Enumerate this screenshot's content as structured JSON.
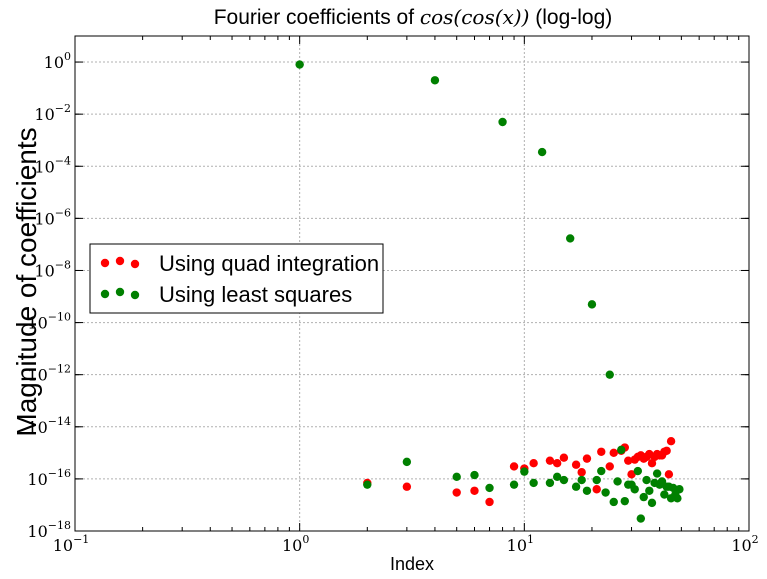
{
  "chart_data": {
    "type": "scatter",
    "title_prefix": "Fourier coefficients of ",
    "title_math": "cos(cos(x))",
    "title_suffix": " (log-log)",
    "xlabel": "Index",
    "ylabel": "Magnitude of coefficients",
    "x_scale": "log",
    "y_scale": "log",
    "xlim": [
      0.1,
      100
    ],
    "ylim": [
      1e-18,
      10
    ],
    "grid": true,
    "legend_position": "center-left",
    "x_ticks": [
      {
        "value": 0.1,
        "base": "10",
        "exp": "−1"
      },
      {
        "value": 1,
        "base": "10",
        "exp": "0"
      },
      {
        "value": 10,
        "base": "10",
        "exp": "1"
      },
      {
        "value": 100,
        "base": "10",
        "exp": "2"
      }
    ],
    "y_ticks": [
      {
        "value": 1,
        "base": "10",
        "exp": "0"
      },
      {
        "value": 0.01,
        "base": "10",
        "exp": "−2"
      },
      {
        "value": 0.0001,
        "base": "10",
        "exp": "−4"
      },
      {
        "value": 1e-06,
        "base": "10",
        "exp": "−6"
      },
      {
        "value": 1e-08,
        "base": "10",
        "exp": "−8"
      },
      {
        "value": 1e-10,
        "base": "10",
        "exp": "−10"
      },
      {
        "value": 1e-12,
        "base": "10",
        "exp": "−12"
      },
      {
        "value": 1e-14,
        "base": "10",
        "exp": "−14"
      },
      {
        "value": 1e-16,
        "base": "10",
        "exp": "−16"
      },
      {
        "value": 1e-18,
        "base": "10",
        "exp": "−18"
      }
    ],
    "series": [
      {
        "name": "Using quad integration",
        "color": "#ff0000",
        "points": [
          [
            2,
            7e-17
          ],
          [
            3,
            5e-17
          ],
          [
            5,
            3e-17
          ],
          [
            6,
            3.5e-17
          ],
          [
            7,
            1.3e-17
          ],
          [
            9,
            3e-16
          ],
          [
            10,
            2.5e-16
          ],
          [
            11,
            4e-16
          ],
          [
            13,
            5e-16
          ],
          [
            14,
            4e-16
          ],
          [
            15,
            6.5e-16
          ],
          [
            17,
            3.5e-16
          ],
          [
            18,
            1.8e-16
          ],
          [
            19,
            6e-16
          ],
          [
            21,
            4e-17
          ],
          [
            22,
            1.1e-15
          ],
          [
            24,
            3e-16
          ],
          [
            25,
            1e-15
          ],
          [
            27,
            1.2e-15
          ],
          [
            28,
            1.6e-15
          ],
          [
            29,
            5e-16
          ],
          [
            30,
            1.5e-16
          ],
          [
            31,
            5.5e-16
          ],
          [
            32,
            7e-16
          ],
          [
            33,
            8e-16
          ],
          [
            34,
            6e-16
          ],
          [
            35,
            7e-16
          ],
          [
            36,
            9e-16
          ],
          [
            37,
            4e-16
          ],
          [
            38,
            7e-16
          ],
          [
            39,
            9e-16
          ],
          [
            40,
            8e-16
          ],
          [
            41,
            8e-16
          ],
          [
            42,
            1.1e-15
          ],
          [
            43,
            1.2e-15
          ],
          [
            44,
            1.5e-16
          ],
          [
            45,
            2.8e-15
          ]
        ]
      },
      {
        "name": "Using least squares",
        "color": "#008000",
        "points": [
          [
            1,
            0.8
          ],
          [
            2,
            6e-17
          ],
          [
            3,
            4.5e-16
          ],
          [
            4,
            0.2
          ],
          [
            5,
            1.2e-16
          ],
          [
            6,
            1.4e-16
          ],
          [
            7,
            4.5e-17
          ],
          [
            8,
            0.005
          ],
          [
            9,
            6e-17
          ],
          [
            10,
            1.9e-16
          ],
          [
            11,
            7e-17
          ],
          [
            12,
            0.00035
          ],
          [
            13,
            7e-17
          ],
          [
            14,
            1.2e-16
          ],
          [
            15,
            9e-17
          ],
          [
            16,
            1.7e-07
          ],
          [
            17,
            5e-17
          ],
          [
            18,
            9e-17
          ],
          [
            19,
            3.5e-17
          ],
          [
            20,
            5e-10
          ],
          [
            21,
            9e-17
          ],
          [
            22,
            2e-16
          ],
          [
            23,
            3e-17
          ],
          [
            24,
            1e-12
          ],
          [
            25,
            1.3e-17
          ],
          [
            26,
            8e-17
          ],
          [
            27,
            1.3e-15
          ],
          [
            28,
            1.4e-17
          ],
          [
            29,
            6e-17
          ],
          [
            30,
            6e-17
          ],
          [
            31,
            4e-17
          ],
          [
            32,
            2e-16
          ],
          [
            33,
            3e-18
          ],
          [
            34,
            2e-17
          ],
          [
            35,
            9e-17
          ],
          [
            36,
            3.5e-17
          ],
          [
            37,
            1.2e-17
          ],
          [
            38,
            7e-17
          ],
          [
            39,
            1.6e-16
          ],
          [
            40,
            6e-17
          ],
          [
            41,
            8e-17
          ],
          [
            42,
            2.5e-17
          ],
          [
            43,
            5e-17
          ],
          [
            44,
            5e-17
          ],
          [
            45,
            1.8e-17
          ],
          [
            46,
            4.5e-17
          ],
          [
            47,
            2.5e-17
          ],
          [
            48,
            1.8e-17
          ],
          [
            49,
            4e-17
          ]
        ]
      }
    ]
  }
}
